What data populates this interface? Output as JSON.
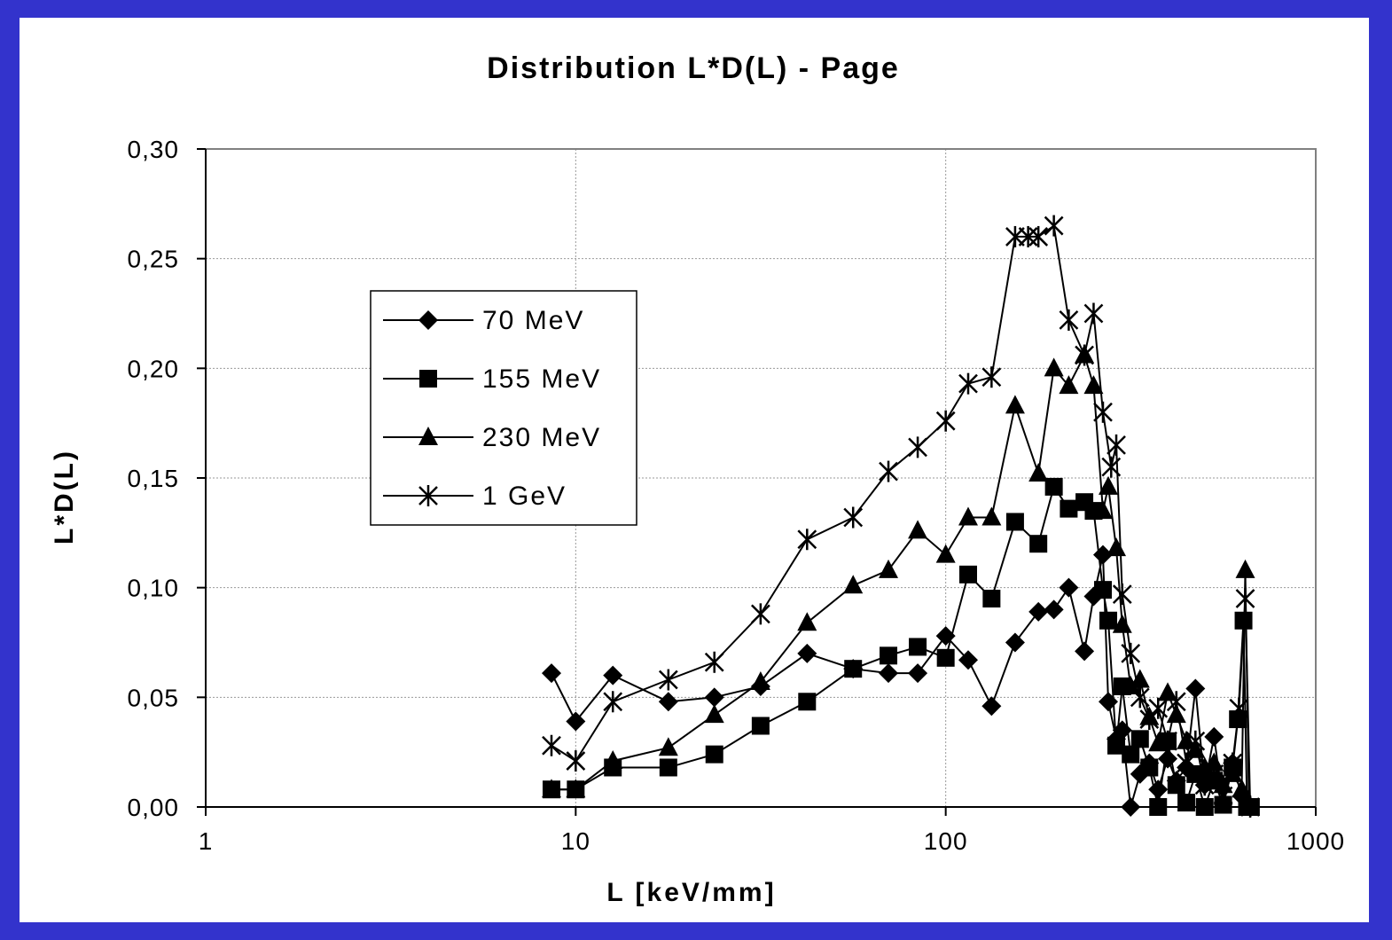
{
  "chart_data": {
    "type": "line",
    "title": "Distribution L*D(L) - Page",
    "xlabel": "L [keV/mm]",
    "ylabel": "L*D(L)",
    "xscale": "log",
    "xlim": [
      1,
      1000
    ],
    "ylim": [
      0,
      0.3
    ],
    "xticks": [
      "1",
      "10",
      "100",
      "1000"
    ],
    "yticks": [
      "0,00",
      "0,05",
      "0,10",
      "0,15",
      "0,20",
      "0,25",
      "0,30"
    ],
    "grid": true,
    "legend_position": "upper-left",
    "series": [
      {
        "name": "70 MeV",
        "marker": "diamond",
        "points": [
          [
            8.6,
            0.061
          ],
          [
            10,
            0.039
          ],
          [
            12.6,
            0.06
          ],
          [
            17.8,
            0.048
          ],
          [
            23.7,
            0.05
          ],
          [
            31.6,
            0.055
          ],
          [
            42.2,
            0.07
          ],
          [
            56.2,
            0.063
          ],
          [
            70,
            0.061
          ],
          [
            84,
            0.061
          ],
          [
            100,
            0.078
          ],
          [
            115,
            0.067
          ],
          [
            133,
            0.046
          ],
          [
            154,
            0.075
          ],
          [
            178,
            0.089
          ],
          [
            196,
            0.09
          ],
          [
            215,
            0.1
          ],
          [
            237,
            0.071
          ],
          [
            251,
            0.096
          ],
          [
            266,
            0.115
          ],
          [
            275,
            0.048
          ],
          [
            289,
            0.031
          ],
          [
            300,
            0.035
          ],
          [
            316,
            0.0
          ],
          [
            335,
            0.015
          ],
          [
            355,
            0.02
          ],
          [
            375,
            0.008
          ],
          [
            398,
            0.022
          ],
          [
            420,
            0.012
          ],
          [
            447,
            0.018
          ],
          [
            473,
            0.054
          ],
          [
            501,
            0.01
          ],
          [
            531,
            0.032
          ],
          [
            562,
            0.002
          ],
          [
            596,
            0.02
          ],
          [
            631,
            0.005
          ],
          [
            668,
            0.0
          ]
        ]
      },
      {
        "name": "155 MeV",
        "marker": "square",
        "points": [
          [
            8.6,
            0.008
          ],
          [
            10,
            0.008
          ],
          [
            12.6,
            0.018
          ],
          [
            17.8,
            0.018
          ],
          [
            23.7,
            0.024
          ],
          [
            31.6,
            0.037
          ],
          [
            42.2,
            0.048
          ],
          [
            56.2,
            0.063
          ],
          [
            70,
            0.069
          ],
          [
            84,
            0.073
          ],
          [
            100,
            0.068
          ],
          [
            115,
            0.106
          ],
          [
            133,
            0.095
          ],
          [
            154,
            0.13
          ],
          [
            178,
            0.12
          ],
          [
            196,
            0.146
          ],
          [
            215,
            0.136
          ],
          [
            237,
            0.139
          ],
          [
            251,
            0.135
          ],
          [
            266,
            0.099
          ],
          [
            275,
            0.085
          ],
          [
            289,
            0.028
          ],
          [
            300,
            0.055
          ],
          [
            316,
            0.024
          ],
          [
            335,
            0.031
          ],
          [
            355,
            0.018
          ],
          [
            375,
            0.0
          ],
          [
            398,
            0.03
          ],
          [
            420,
            0.01
          ],
          [
            447,
            0.002
          ],
          [
            473,
            0.015
          ],
          [
            501,
            0.0
          ],
          [
            531,
            0.012
          ],
          [
            562,
            0.001
          ],
          [
            596,
            0.018
          ],
          [
            616,
            0.04
          ],
          [
            638,
            0.085
          ],
          [
            652,
            0.0
          ],
          [
            668,
            0.0
          ]
        ]
      },
      {
        "name": "230 MeV",
        "marker": "triangle",
        "points": [
          [
            8.6,
            0.008
          ],
          [
            10,
            0.008
          ],
          [
            12.6,
            0.021
          ],
          [
            17.8,
            0.027
          ],
          [
            23.7,
            0.042
          ],
          [
            31.6,
            0.057
          ],
          [
            42.2,
            0.084
          ],
          [
            56.2,
            0.101
          ],
          [
            70,
            0.108
          ],
          [
            84,
            0.126
          ],
          [
            100,
            0.115
          ],
          [
            115,
            0.132
          ],
          [
            133,
            0.132
          ],
          [
            154,
            0.183
          ],
          [
            178,
            0.152
          ],
          [
            196,
            0.2
          ],
          [
            215,
            0.192
          ],
          [
            237,
            0.206
          ],
          [
            251,
            0.192
          ],
          [
            266,
            0.135
          ],
          [
            275,
            0.146
          ],
          [
            289,
            0.118
          ],
          [
            300,
            0.083
          ],
          [
            316,
            0.055
          ],
          [
            335,
            0.058
          ],
          [
            355,
            0.041
          ],
          [
            375,
            0.029
          ],
          [
            398,
            0.052
          ],
          [
            420,
            0.042
          ],
          [
            447,
            0.03
          ],
          [
            473,
            0.026
          ],
          [
            501,
            0.018
          ],
          [
            531,
            0.02
          ],
          [
            562,
            0.01
          ],
          [
            596,
            0.015
          ],
          [
            631,
            0.008
          ],
          [
            645,
            0.108
          ],
          [
            660,
            0.0
          ]
        ]
      },
      {
        "name": "1 GeV",
        "marker": "star",
        "points": [
          [
            8.6,
            0.028
          ],
          [
            10,
            0.021
          ],
          [
            12.6,
            0.048
          ],
          [
            17.8,
            0.058
          ],
          [
            23.7,
            0.066
          ],
          [
            31.6,
            0.088
          ],
          [
            42.2,
            0.122
          ],
          [
            56.2,
            0.132
          ],
          [
            70,
            0.153
          ],
          [
            84,
            0.164
          ],
          [
            100,
            0.176
          ],
          [
            115,
            0.193
          ],
          [
            133,
            0.196
          ],
          [
            154,
            0.26
          ],
          [
            167,
            0.26
          ],
          [
            178,
            0.26
          ],
          [
            196,
            0.265
          ],
          [
            215,
            0.222
          ],
          [
            237,
            0.206
          ],
          [
            251,
            0.225
          ],
          [
            266,
            0.18
          ],
          [
            280,
            0.155
          ],
          [
            289,
            0.165
          ],
          [
            300,
            0.097
          ],
          [
            316,
            0.07
          ],
          [
            335,
            0.05
          ],
          [
            355,
            0.04
          ],
          [
            375,
            0.045
          ],
          [
            398,
            0.03
          ],
          [
            420,
            0.048
          ],
          [
            447,
            0.02
          ],
          [
            473,
            0.03
          ],
          [
            501,
            0.01
          ],
          [
            531,
            0.015
          ],
          [
            562,
            0.005
          ],
          [
            596,
            0.02
          ],
          [
            620,
            0.045
          ],
          [
            645,
            0.095
          ],
          [
            665,
            0.0
          ]
        ]
      }
    ]
  }
}
